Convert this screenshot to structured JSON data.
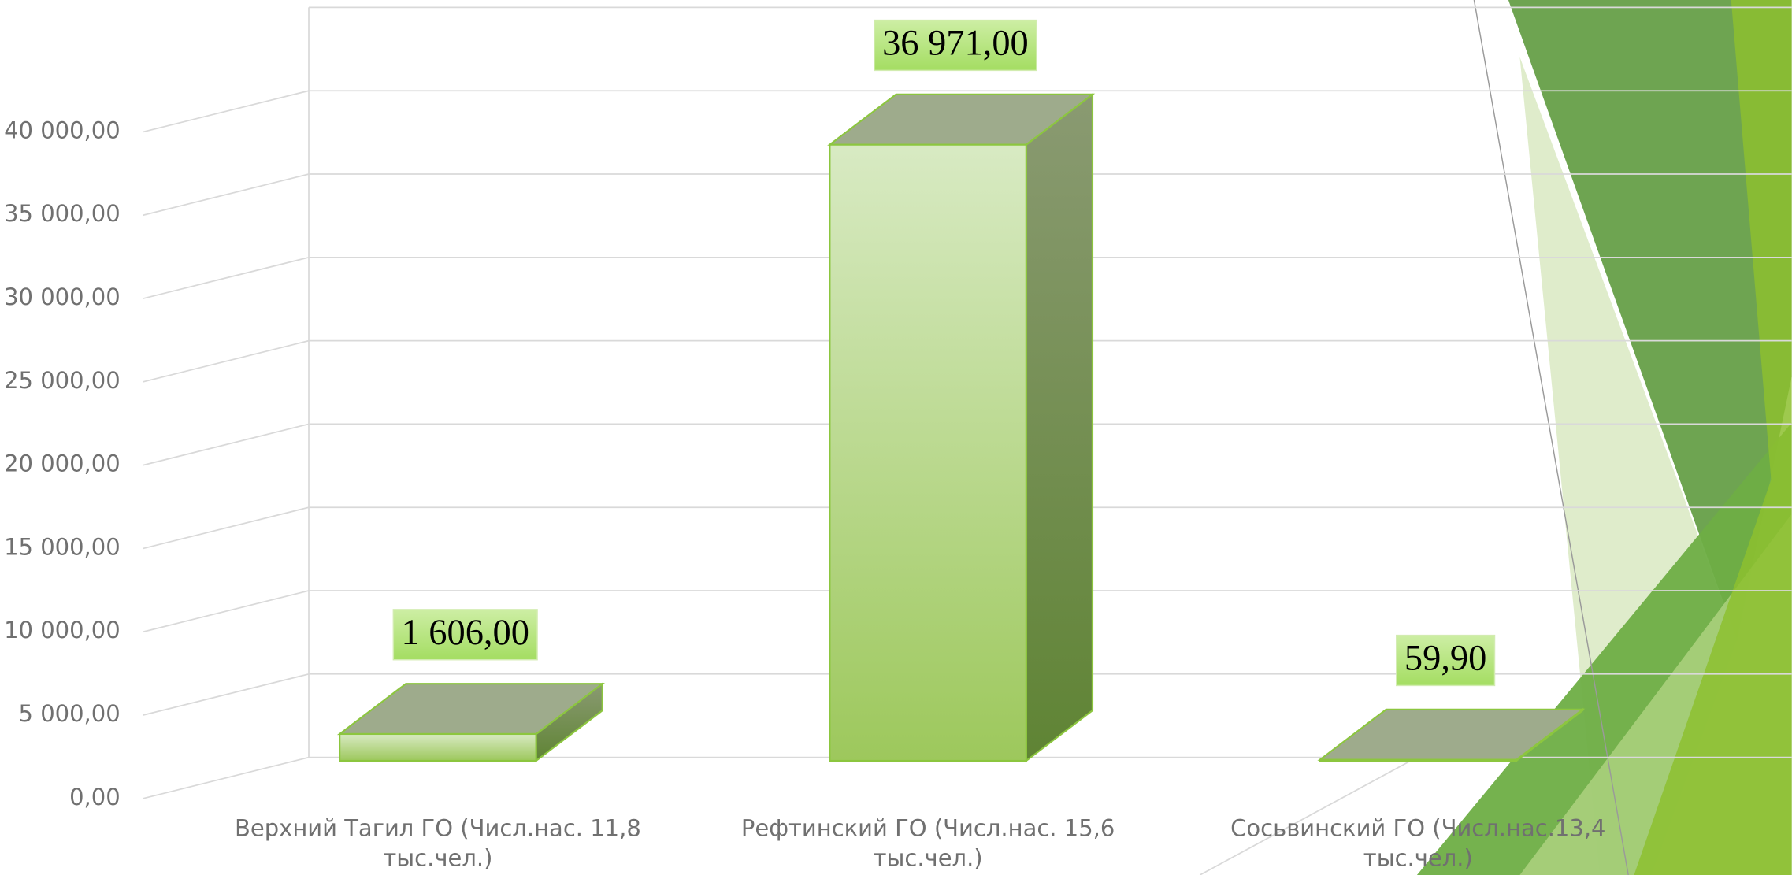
{
  "chart_data": {
    "type": "bar3d",
    "categories": [
      "Верхний Тагил ГО (Числ.нас. 11,8 тыс.чел.)",
      "Рефтинский ГО (Числ.нас. 15,6 тыс.чел.)",
      "Сосьвинский ГО (Числ.нас.13,4 тыс.чел.)"
    ],
    "values": [
      1606,
      36971,
      59.9
    ],
    "value_labels": [
      "1 606,00",
      "36 971,00",
      "59,90"
    ],
    "ylim": [
      0,
      45000
    ],
    "yticks": [
      {
        "value": 0,
        "label": "0,00"
      },
      {
        "value": 5000,
        "label": "5 000,00"
      },
      {
        "value": 10000,
        "label": "10 000,00"
      },
      {
        "value": 15000,
        "label": "15 000,00"
      },
      {
        "value": 20000,
        "label": "20 000,00"
      },
      {
        "value": 25000,
        "label": "25 000,00"
      },
      {
        "value": 30000,
        "label": "30 000,00"
      },
      {
        "value": 35000,
        "label": "35 000,00"
      },
      {
        "value": 40000,
        "label": "40 000,00"
      }
    ],
    "grid": true
  }
}
